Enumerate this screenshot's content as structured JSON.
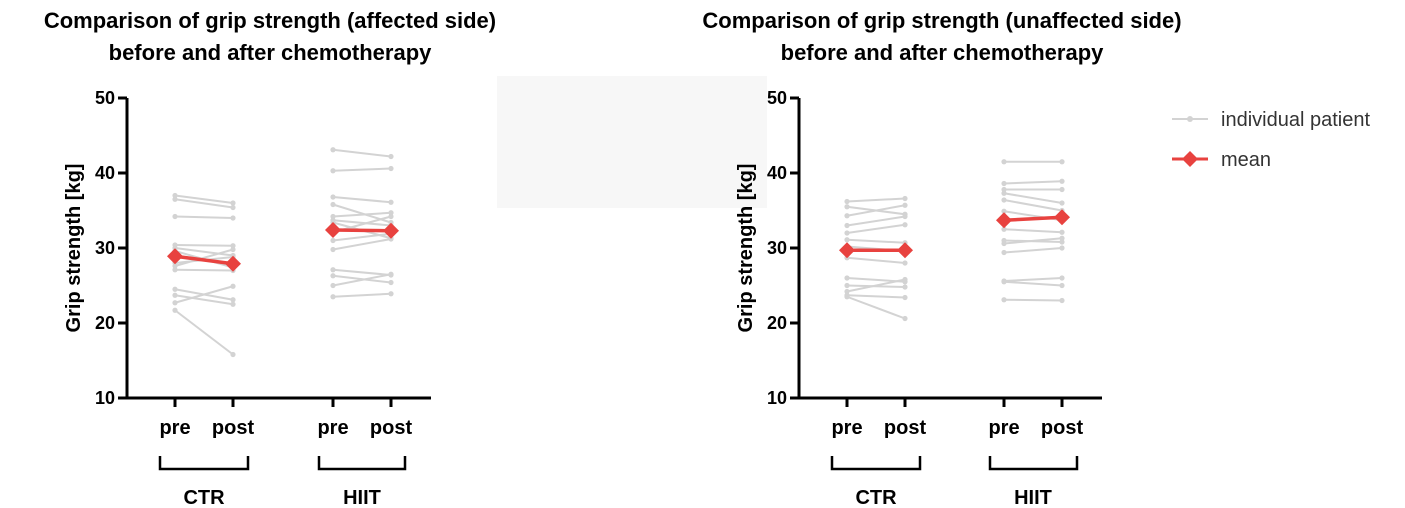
{
  "chart_data": [
    {
      "type": "line",
      "title_lines": [
        "Comparison of grip strength (affected side)",
        "before and after chemotherapy"
      ],
      "ylabel": "Grip strength [kg]",
      "ylim": [
        10,
        50
      ],
      "yticks": [
        10,
        20,
        30,
        40,
        50
      ],
      "x_tick_labels": [
        "pre",
        "post",
        "pre",
        "post"
      ],
      "groups": [
        {
          "name": "CTR",
          "individual": [
            [
              37.0,
              36.0
            ],
            [
              36.5,
              35.4
            ],
            [
              34.2,
              34.0
            ],
            [
              30.4,
              30.3
            ],
            [
              30.0,
              29.0
            ],
            [
              29.6,
              27.4
            ],
            [
              28.0,
              28.8
            ],
            [
              27.6,
              29.8
            ],
            [
              27.1,
              27.0
            ],
            [
              24.5,
              23.1
            ],
            [
              23.7,
              22.5
            ],
            [
              22.7,
              24.9
            ],
            [
              21.7,
              15.8
            ]
          ],
          "mean": [
            28.9,
            27.9
          ]
        },
        {
          "name": "HIIT",
          "individual": [
            [
              43.1,
              42.2
            ],
            [
              40.3,
              40.6
            ],
            [
              36.8,
              36.1
            ],
            [
              35.8,
              33.4
            ],
            [
              34.2,
              34.7
            ],
            [
              33.7,
              33.0
            ],
            [
              33.4,
              31.3
            ],
            [
              32.1,
              34.2
            ],
            [
              31.0,
              31.9
            ],
            [
              29.8,
              31.2
            ],
            [
              27.1,
              26.4
            ],
            [
              26.3,
              25.4
            ],
            [
              25.0,
              26.5
            ],
            [
              23.5,
              23.9
            ]
          ],
          "mean": [
            32.4,
            32.3
          ]
        }
      ]
    },
    {
      "type": "line",
      "title_lines": [
        "Comparison of grip strength (unaffected side)",
        "before and after chemotherapy"
      ],
      "ylabel": "Grip strength [kg]",
      "ylim": [
        10,
        50
      ],
      "yticks": [
        10,
        20,
        30,
        40,
        50
      ],
      "x_tick_labels": [
        "pre",
        "post",
        "pre",
        "post"
      ],
      "groups": [
        {
          "name": "CTR",
          "individual": [
            [
              36.2,
              36.6
            ],
            [
              35.5,
              34.5
            ],
            [
              34.3,
              35.7
            ],
            [
              33.0,
              34.2
            ],
            [
              32.0,
              33.1
            ],
            [
              31.1,
              30.7
            ],
            [
              30.2,
              29.6
            ],
            [
              28.7,
              28.0
            ],
            [
              26.0,
              25.5
            ],
            [
              25.0,
              24.8
            ],
            [
              24.2,
              25.8
            ],
            [
              23.7,
              23.4
            ],
            [
              23.5,
              20.6
            ]
          ],
          "mean": [
            29.7,
            29.7
          ]
        },
        {
          "name": "HIIT",
          "individual": [
            [
              41.5,
              41.5
            ],
            [
              38.6,
              38.9
            ],
            [
              37.8,
              37.8
            ],
            [
              37.3,
              36.0
            ],
            [
              36.4,
              35.0
            ],
            [
              34.9,
              33.7
            ],
            [
              32.5,
              32.1
            ],
            [
              31.0,
              30.8
            ],
            [
              30.6,
              31.3
            ],
            [
              29.4,
              30.0
            ],
            [
              25.6,
              26.0
            ],
            [
              25.5,
              25.0
            ],
            [
              23.1,
              23.0
            ]
          ],
          "mean": [
            33.7,
            34.1
          ]
        }
      ]
    }
  ],
  "legend": {
    "individual_label": "individual patient",
    "mean_label": "mean"
  },
  "colors": {
    "individual": "#d3d3d3",
    "mean": "#e8423f",
    "axis": "#000000"
  }
}
